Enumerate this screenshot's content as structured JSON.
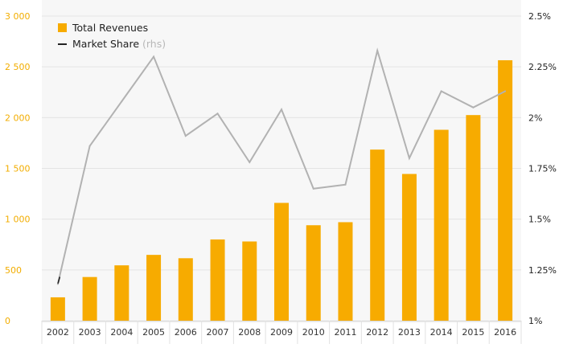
{
  "chart_data": {
    "type": "bar",
    "categories": [
      "2002",
      "2003",
      "2004",
      "2005",
      "2006",
      "2007",
      "2008",
      "2009",
      "2010",
      "2011",
      "2012",
      "2013",
      "2014",
      "2015",
      "2016"
    ],
    "series": [
      {
        "name": "Total Revenues",
        "type": "bar",
        "axis": "left",
        "color": "#f7ab00",
        "values": [
          230,
          430,
          545,
          648,
          615,
          800,
          780,
          1160,
          940,
          970,
          1685,
          1445,
          1880,
          2025,
          2565
        ]
      },
      {
        "name": "Market Share",
        "name_note": "(rhs)",
        "type": "line",
        "axis": "right",
        "color": "#b2b2b2",
        "values": [
          1.18,
          1.86,
          2.08,
          2.3,
          1.91,
          2.02,
          1.78,
          2.04,
          1.65,
          1.67,
          2.33,
          1.8,
          2.13,
          2.05,
          2.13
        ]
      }
    ],
    "y_left": {
      "ylim": [
        0,
        3000
      ],
      "ticks": [
        0,
        500,
        1000,
        1500,
        2000,
        2500,
        3000
      ],
      "tick_labels": [
        "0",
        "500",
        "1 000",
        "1 500",
        "2 000",
        "2 500",
        "3 000"
      ],
      "color": "#f2ad00"
    },
    "y_right": {
      "ylim": [
        1.0,
        2.5
      ],
      "ticks": [
        1.0,
        1.25,
        1.5,
        1.75,
        2.0,
        2.25,
        2.5
      ],
      "tick_labels": [
        "1%",
        "1.25%",
        "1.5%",
        "1.75%",
        "2%",
        "2.25%",
        "2.5%"
      ]
    },
    "title": "",
    "xlabel": "",
    "ylabel": "",
    "grid": true,
    "legend_position": "top-left",
    "background": "#f7f7f7",
    "gridline_color": "#e4e4e4"
  }
}
